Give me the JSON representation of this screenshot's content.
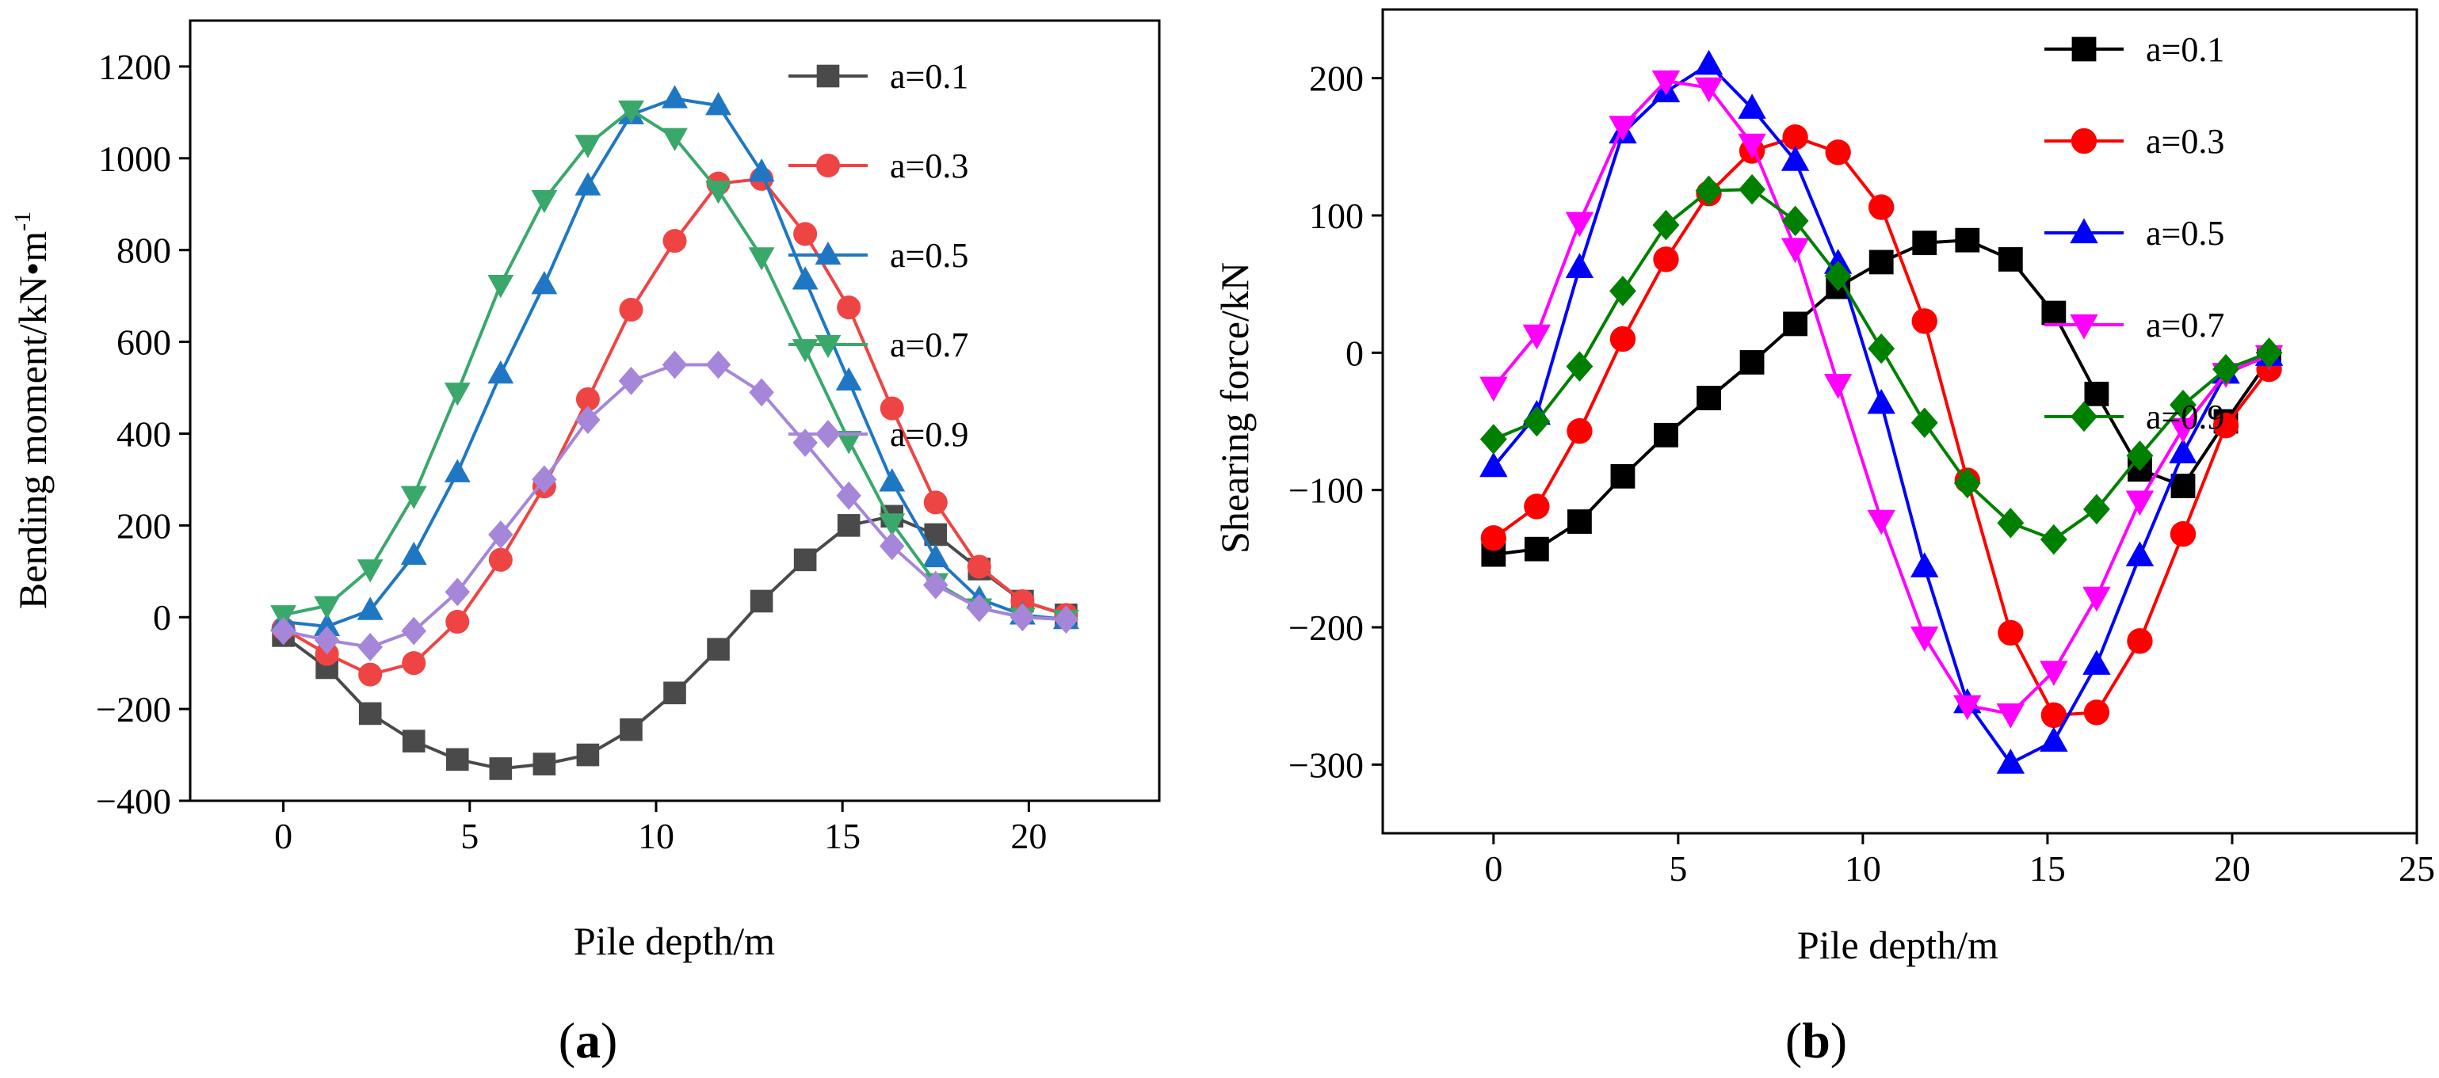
{
  "chart_data": [
    {
      "type": "line",
      "panel": "a",
      "panel_label": "a",
      "xlabel": "Pile depth/m",
      "ylabel_main": "Bending moment/kN•m",
      "ylabel_sup": "-1",
      "xlim": [
        -2.5,
        23.5
      ],
      "ylim": [
        -400,
        1300
      ],
      "xticks": [
        0,
        5,
        10,
        15,
        20
      ],
      "yticks": [
        -400,
        -200,
        0,
        200,
        400,
        600,
        800,
        1000,
        1200
      ],
      "tick_labels_x": [
        "0",
        "5",
        "10",
        "15",
        "20"
      ],
      "tick_labels_y": [
        "−400",
        "−200",
        "0",
        "200",
        "400",
        "600",
        "800",
        "1000",
        "1200"
      ],
      "legend_position": "top-right",
      "x": [
        0,
        1.17,
        2.33,
        3.5,
        4.67,
        5.83,
        7,
        8.17,
        9.33,
        10.5,
        11.67,
        12.83,
        14,
        15.17,
        16.33,
        17.5,
        18.67,
        19.83,
        21
      ],
      "series": [
        {
          "name": "a=0.1",
          "color": "#4a4a4a",
          "marker": "square",
          "values": [
            -40,
            -110,
            -210,
            -270,
            -310,
            -330,
            -320,
            -300,
            -245,
            -165,
            -70,
            35,
            125,
            200,
            220,
            180,
            105,
            35,
            5
          ]
        },
        {
          "name": "a=0.3",
          "color": "#ef4444",
          "marker": "circle",
          "values": [
            -25,
            -80,
            -125,
            -100,
            -10,
            125,
            285,
            475,
            670,
            820,
            945,
            955,
            835,
            675,
            455,
            250,
            110,
            35,
            5
          ]
        },
        {
          "name": "a=0.5",
          "color": "#1f77c4",
          "marker": "triangle-up",
          "values": [
            -10,
            -20,
            15,
            135,
            315,
            530,
            725,
            940,
            1095,
            1130,
            1115,
            970,
            735,
            515,
            295,
            130,
            40,
            5,
            -5
          ]
        },
        {
          "name": "a=0.7",
          "color": "#3aa86b",
          "marker": "triangle-down",
          "values": [
            5,
            25,
            105,
            265,
            490,
            725,
            910,
            1030,
            1105,
            1045,
            930,
            785,
            585,
            385,
            205,
            75,
            20,
            0,
            -5
          ]
        },
        {
          "name": "a=0.9",
          "color": "#a586d9",
          "marker": "diamond",
          "values": [
            -30,
            -50,
            -65,
            -30,
            55,
            180,
            300,
            430,
            515,
            550,
            550,
            490,
            380,
            265,
            155,
            70,
            20,
            0,
            -5
          ]
        }
      ]
    },
    {
      "type": "line",
      "panel": "b",
      "panel_label": "b",
      "xlabel": "Pile depth/m",
      "ylabel": "Shearing force/kN",
      "xlim": [
        -3,
        25
      ],
      "ylim": [
        -350,
        250
      ],
      "xticks": [
        0,
        5,
        10,
        15,
        20,
        25
      ],
      "yticks": [
        -300,
        -200,
        -100,
        0,
        100,
        200
      ],
      "tick_labels_x": [
        "0",
        "5",
        "10",
        "15",
        "20",
        "25"
      ],
      "tick_labels_y": [
        "−300",
        "−200",
        "−100",
        "0",
        "100",
        "200"
      ],
      "legend_position": "top-right",
      "x": [
        0,
        1.17,
        2.33,
        3.5,
        4.67,
        5.83,
        7,
        8.17,
        9.33,
        10.5,
        11.67,
        12.83,
        14,
        15.17,
        16.33,
        17.5,
        18.67,
        19.83,
        21
      ],
      "series": [
        {
          "name": "a=0.1",
          "color": "#000000",
          "marker": "square",
          "values": [
            -147,
            -143,
            -123,
            -90,
            -60,
            -33,
            -7,
            21,
            48,
            66,
            80,
            82,
            68,
            29,
            -30,
            -85,
            -97,
            -50,
            -5
          ]
        },
        {
          "name": "a=0.3",
          "color": "#ff0000",
          "marker": "circle",
          "values": [
            -135,
            -112,
            -57,
            10,
            68,
            116,
            147,
            157,
            146,
            106,
            23,
            -93,
            -204,
            -264,
            -262,
            -210,
            -132,
            -53,
            -12
          ]
        },
        {
          "name": "a=0.5",
          "color": "#0000ff",
          "marker": "triangle-up",
          "values": [
            -83,
            -45,
            62,
            160,
            190,
            210,
            178,
            140,
            65,
            -37,
            -156,
            -255,
            -299,
            -283,
            -227,
            -148,
            -73,
            -15,
            -2
          ]
        },
        {
          "name": "a=0.7",
          "color": "#ff00ff",
          "marker": "triangle-down",
          "values": [
            -25,
            13,
            95,
            165,
            198,
            193,
            152,
            76,
            -23,
            -122,
            -207,
            -257,
            -263,
            -232,
            -178,
            -108,
            -55,
            -15,
            -2
          ]
        },
        {
          "name": "a=0.9",
          "color": "#008000",
          "marker": "diamond",
          "values": [
            -63,
            -50,
            -10,
            45,
            93,
            118,
            119,
            96,
            56,
            3,
            -51,
            -95,
            -124,
            -136,
            -114,
            -75,
            -38,
            -12,
            0
          ]
        }
      ]
    }
  ]
}
